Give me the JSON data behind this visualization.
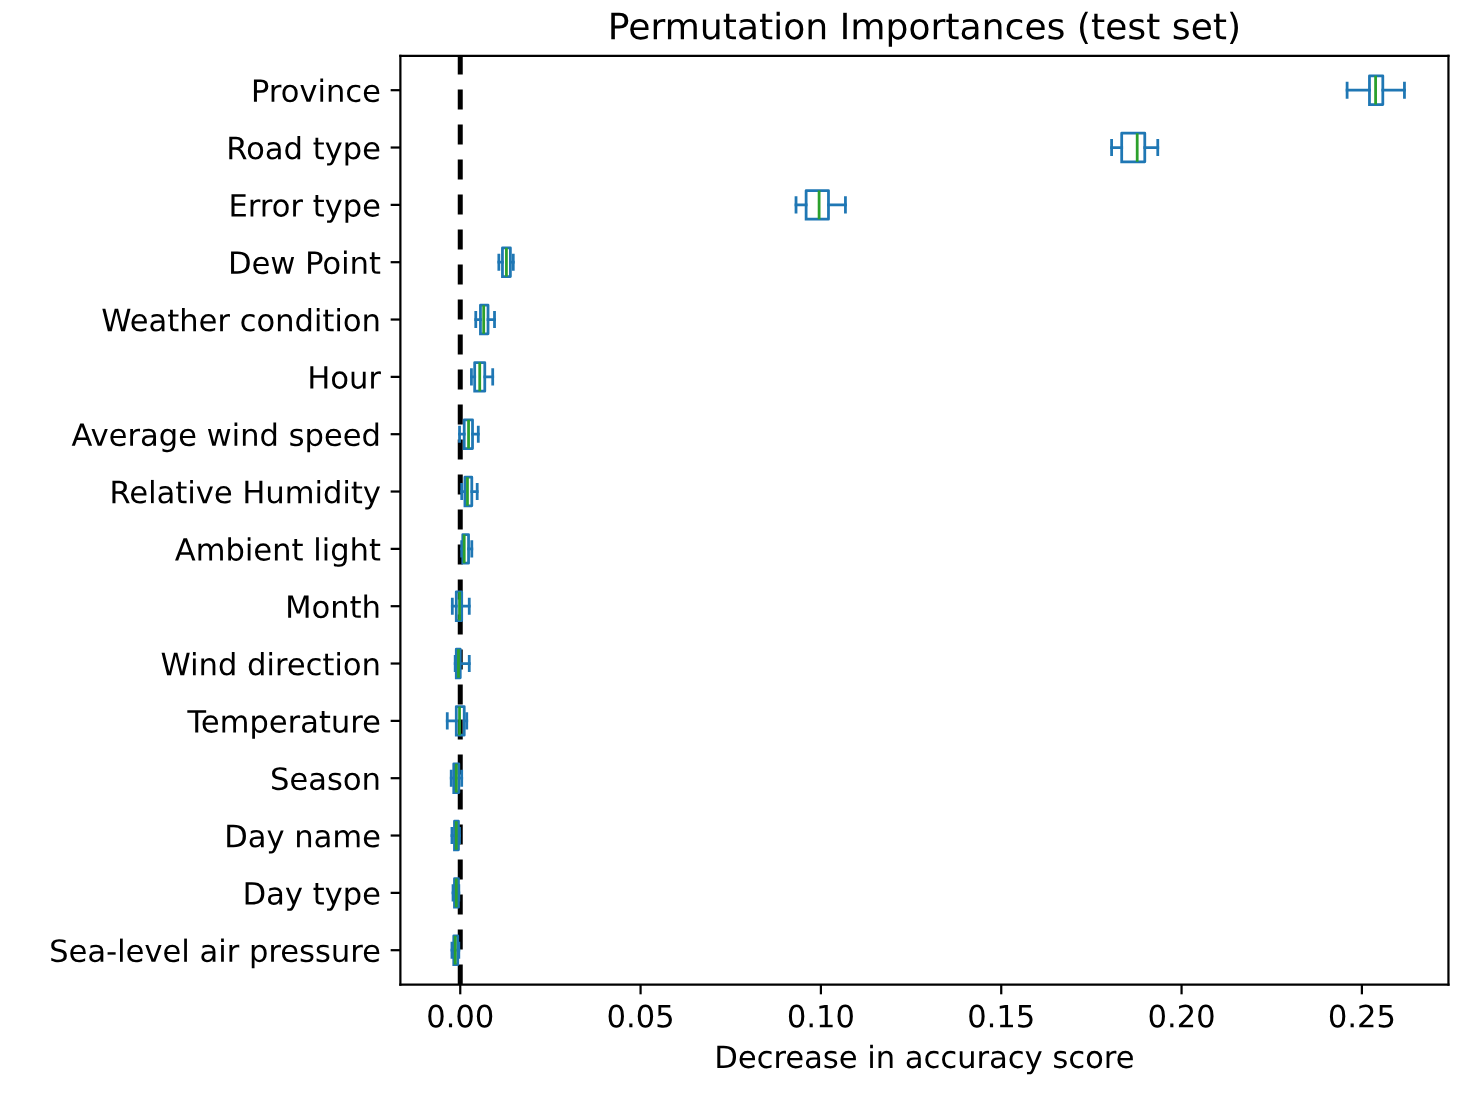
{
  "chart_data": {
    "type": "box",
    "orientation": "horizontal",
    "title": "Permutation Importances (test set)",
    "xlabel": "Decrease in accuracy score",
    "categories": [
      "Province",
      "Road type",
      "Error type",
      "Dew Point",
      "Weather condition",
      "Hour",
      "Average wind speed",
      "Relative Humidity",
      "Ambient light",
      "Month",
      "Wind direction",
      "Temperature",
      "Season",
      "Day name",
      "Day type",
      "Sea-level air pressure"
    ],
    "series": [
      {
        "color": "#1f77b4",
        "boxes": [
          {
            "low": 0.2459,
            "q1": 0.2521,
            "median": 0.2538,
            "q3": 0.2558,
            "high": 0.2618
          },
          {
            "low": 0.1806,
            "q1": 0.1834,
            "median": 0.1877,
            "q3": 0.1898,
            "high": 0.1934
          },
          {
            "low": 0.0931,
            "q1": 0.0959,
            "median": 0.0995,
            "q3": 0.1021,
            "high": 0.1068
          },
          {
            "low": 0.0107,
            "q1": 0.0117,
            "median": 0.0128,
            "q3": 0.0139,
            "high": 0.0147
          },
          {
            "low": 0.0043,
            "q1": 0.0056,
            "median": 0.0065,
            "q3": 0.0077,
            "high": 0.0095
          },
          {
            "low": 0.0031,
            "q1": 0.004,
            "median": 0.0054,
            "q3": 0.0068,
            "high": 0.009
          },
          {
            "low": -0.0002,
            "q1": 0.0011,
            "median": 0.0023,
            "q3": 0.0034,
            "high": 0.005
          },
          {
            "low": 0.0004,
            "q1": 0.0013,
            "median": 0.002,
            "q3": 0.0032,
            "high": 0.0047
          },
          {
            "low": 0.0004,
            "q1": 0.0007,
            "median": 0.0011,
            "q3": 0.0023,
            "high": 0.0032
          },
          {
            "low": -0.0022,
            "q1": -0.0011,
            "median": -0.0002,
            "q3": 0.0004,
            "high": 0.0025
          },
          {
            "low": -0.0014,
            "q1": -0.0011,
            "median": -0.0005,
            "q3": 0.0,
            "high": 0.0025
          },
          {
            "low": -0.0036,
            "q1": -0.0011,
            "median": -0.0002,
            "q3": 0.0011,
            "high": 0.0018
          },
          {
            "low": -0.0025,
            "q1": -0.0018,
            "median": -0.0011,
            "q3": -0.0004,
            "high": 0.0004
          },
          {
            "low": -0.0023,
            "q1": -0.0016,
            "median": -0.0011,
            "q3": -0.0005,
            "high": -0.0002
          },
          {
            "low": -0.002,
            "q1": -0.0016,
            "median": -0.0011,
            "q3": -0.0005,
            "high": -0.0004
          },
          {
            "low": -0.0023,
            "q1": -0.0018,
            "median": -0.0014,
            "q3": -0.0007,
            "high": -0.0004
          }
        ]
      }
    ],
    "xlim": [
      -0.0166,
      0.274
    ],
    "xticks": [
      {
        "value": 0,
        "label": "0.00"
      },
      {
        "value": 0.05,
        "label": "0.05"
      },
      {
        "value": 0.1,
        "label": "0.10"
      },
      {
        "value": 0.15,
        "label": "0.15"
      },
      {
        "value": 0.2,
        "label": "0.20"
      },
      {
        "value": 0.25,
        "label": "0.25"
      }
    ],
    "ref_lines": [
      {
        "axis": "x",
        "value": 0,
        "color": "#000000",
        "line_style": "dashed"
      }
    ],
    "grid": false
  }
}
